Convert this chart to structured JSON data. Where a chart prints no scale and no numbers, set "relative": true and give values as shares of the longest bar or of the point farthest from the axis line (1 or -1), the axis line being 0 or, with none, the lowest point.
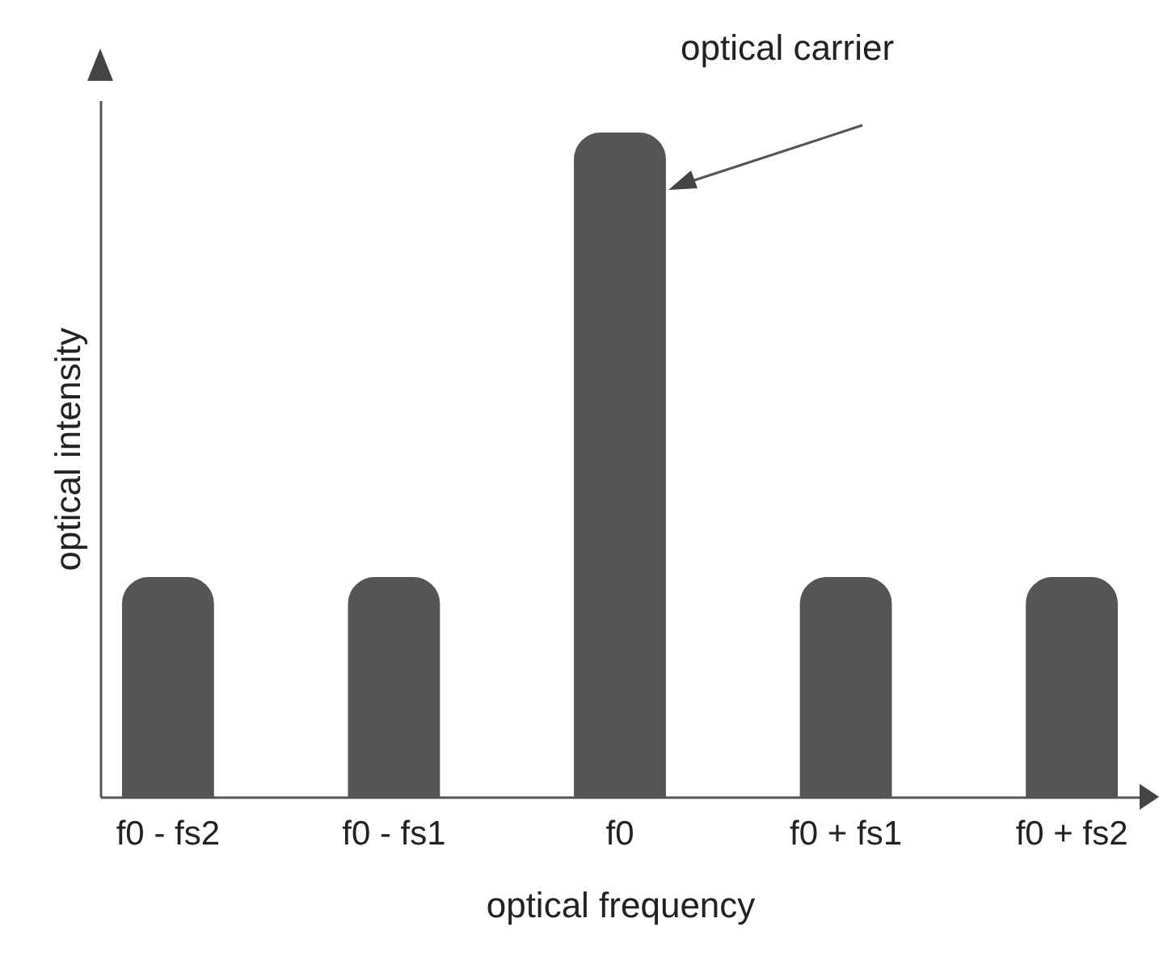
{
  "chart_data": {
    "type": "bar",
    "relative": true,
    "xlabel": "optical frequency",
    "ylabel": "optical intensity",
    "categories": [
      "f0 - fs2",
      "f0 - fs1",
      "f0",
      "f0 + fs1",
      "f0 + fs2"
    ],
    "values": [
      0.33,
      0.33,
      1,
      0.33,
      0.33
    ],
    "color": "#555555",
    "annotations": [
      "optical carrier"
    ]
  }
}
